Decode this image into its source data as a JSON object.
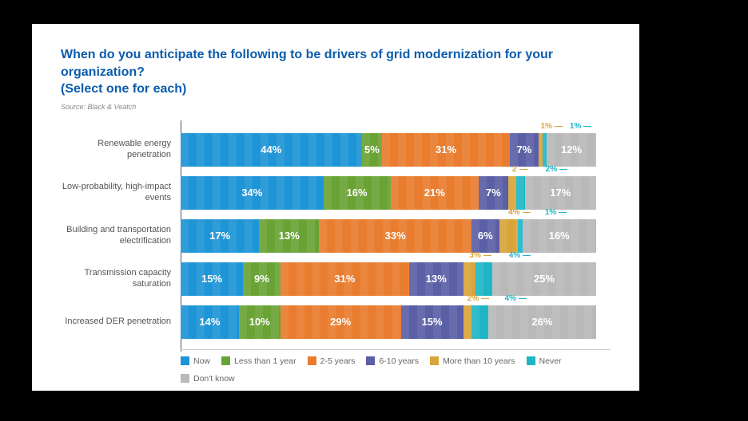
{
  "title_line1": "When do you anticipate the following to be drivers of grid modernization for your organization?",
  "title_line2": "(Select one for each)",
  "source": "Source: Black & Veatch",
  "chart": {
    "type": "stacked-bar-horizontal",
    "series": [
      {
        "key": "now",
        "label": "Now",
        "color": "#1e95d6"
      },
      {
        "key": "lt1",
        "label": "Less than 1 year",
        "color": "#6aa335"
      },
      {
        "key": "y25",
        "label": "2-5 years",
        "color": "#e97c2e"
      },
      {
        "key": "y610",
        "label": "6-10 years",
        "color": "#5b5fa5"
      },
      {
        "key": "gt10",
        "label": "More than 10 years",
        "color": "#d9a43b"
      },
      {
        "key": "never",
        "label": "Never",
        "color": "#1eb6c6"
      },
      {
        "key": "dk",
        "label": "Don't know",
        "color": "#b9b9b9"
      }
    ],
    "label_fontsize": 11,
    "value_fontsize": 13,
    "rows": [
      {
        "label": "Renewable energy penetration",
        "values": {
          "now": 44,
          "lt1": 5,
          "y25": 31,
          "y610": 7,
          "gt10": 1,
          "never": 1,
          "dk": 12
        },
        "callouts": {
          "gt10": "1%",
          "never": "1%"
        }
      },
      {
        "label": "Low-probability, high-impact events",
        "values": {
          "now": 34,
          "lt1": 16,
          "y25": 21,
          "y610": 7,
          "gt10": 2,
          "never": 2,
          "dk": 17
        },
        "callouts": {
          "gt10": "2",
          "never": "2%"
        }
      },
      {
        "label": "Building and transportation electrification",
        "values": {
          "now": 17,
          "lt1": 13,
          "y25": 33,
          "y610": 6,
          "gt10": 4,
          "never": 1,
          "dk": 16
        },
        "callouts": {
          "gt10": "4%",
          "never": "1%"
        }
      },
      {
        "label": "Transmission capacity saturation",
        "values": {
          "now": 15,
          "lt1": 9,
          "y25": 31,
          "y610": 13,
          "gt10": 3,
          "never": 4,
          "dk": 25
        },
        "callouts": {
          "gt10": "3%",
          "never": "4%"
        }
      },
      {
        "label": "Increased DER penetration",
        "values": {
          "now": 14,
          "lt1": 10,
          "y25": 29,
          "y610": 15,
          "gt10": 2,
          "never": 4,
          "dk": 26
        },
        "callouts": {
          "gt10": "2%",
          "never": "4%"
        }
      }
    ]
  }
}
